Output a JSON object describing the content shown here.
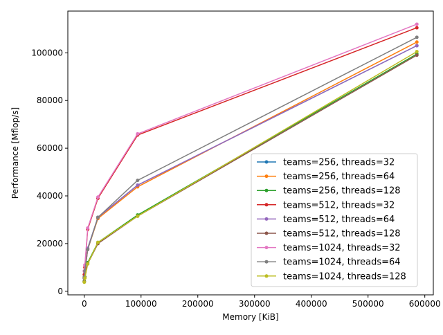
{
  "chart_data": {
    "type": "line",
    "title": "",
    "xlabel": "Memory [KiB]",
    "ylabel": "Performance [Mflop/s]",
    "xlim": [
      -29000,
      615000
    ],
    "ylim": [
      -1500,
      117500
    ],
    "xticks": [
      0,
      100000,
      200000,
      300000,
      400000,
      500000,
      600000
    ],
    "yticks": [
      0,
      20000,
      40000,
      60000,
      80000,
      100000
    ],
    "grid": false,
    "legend_position": "lower-right",
    "x": [
      0,
      1000,
      6000,
      24000,
      94000,
      586000
    ],
    "series": [
      {
        "name": "teams=256, threads=32",
        "color": "#1f77b4",
        "values": [
          5500,
          8000,
          18000,
          31000,
          44500,
          103000
        ]
      },
      {
        "name": "teams=256, threads=64",
        "color": "#ff7f0e",
        "values": [
          5500,
          8000,
          17500,
          30500,
          43800,
          104500
        ]
      },
      {
        "name": "teams=256, threads=128",
        "color": "#2ca02c",
        "values": [
          4200,
          6000,
          12000,
          20500,
          32000,
          99500
        ]
      },
      {
        "name": "teams=512, threads=32",
        "color": "#d62728",
        "values": [
          7000,
          10000,
          26000,
          39000,
          65500,
          110500
        ]
      },
      {
        "name": "teams=512, threads=64",
        "color": "#9467bd",
        "values": [
          5500,
          8000,
          18000,
          31000,
          44500,
          103000
        ]
      },
      {
        "name": "teams=512, threads=128",
        "color": "#8c564b",
        "values": [
          4000,
          5800,
          11500,
          20000,
          31500,
          99000
        ]
      },
      {
        "name": "teams=1024, threads=32",
        "color": "#e377c2",
        "values": [
          8500,
          11000,
          26500,
          39500,
          66000,
          112000
        ]
      },
      {
        "name": "teams=1024, threads=64",
        "color": "#7f7f7f",
        "values": [
          6000,
          8500,
          17500,
          31000,
          46500,
          106500
        ]
      },
      {
        "name": "teams=1024, threads=128",
        "color": "#bcbd22",
        "values": [
          3800,
          5500,
          11500,
          20500,
          31500,
          100500
        ]
      }
    ]
  }
}
